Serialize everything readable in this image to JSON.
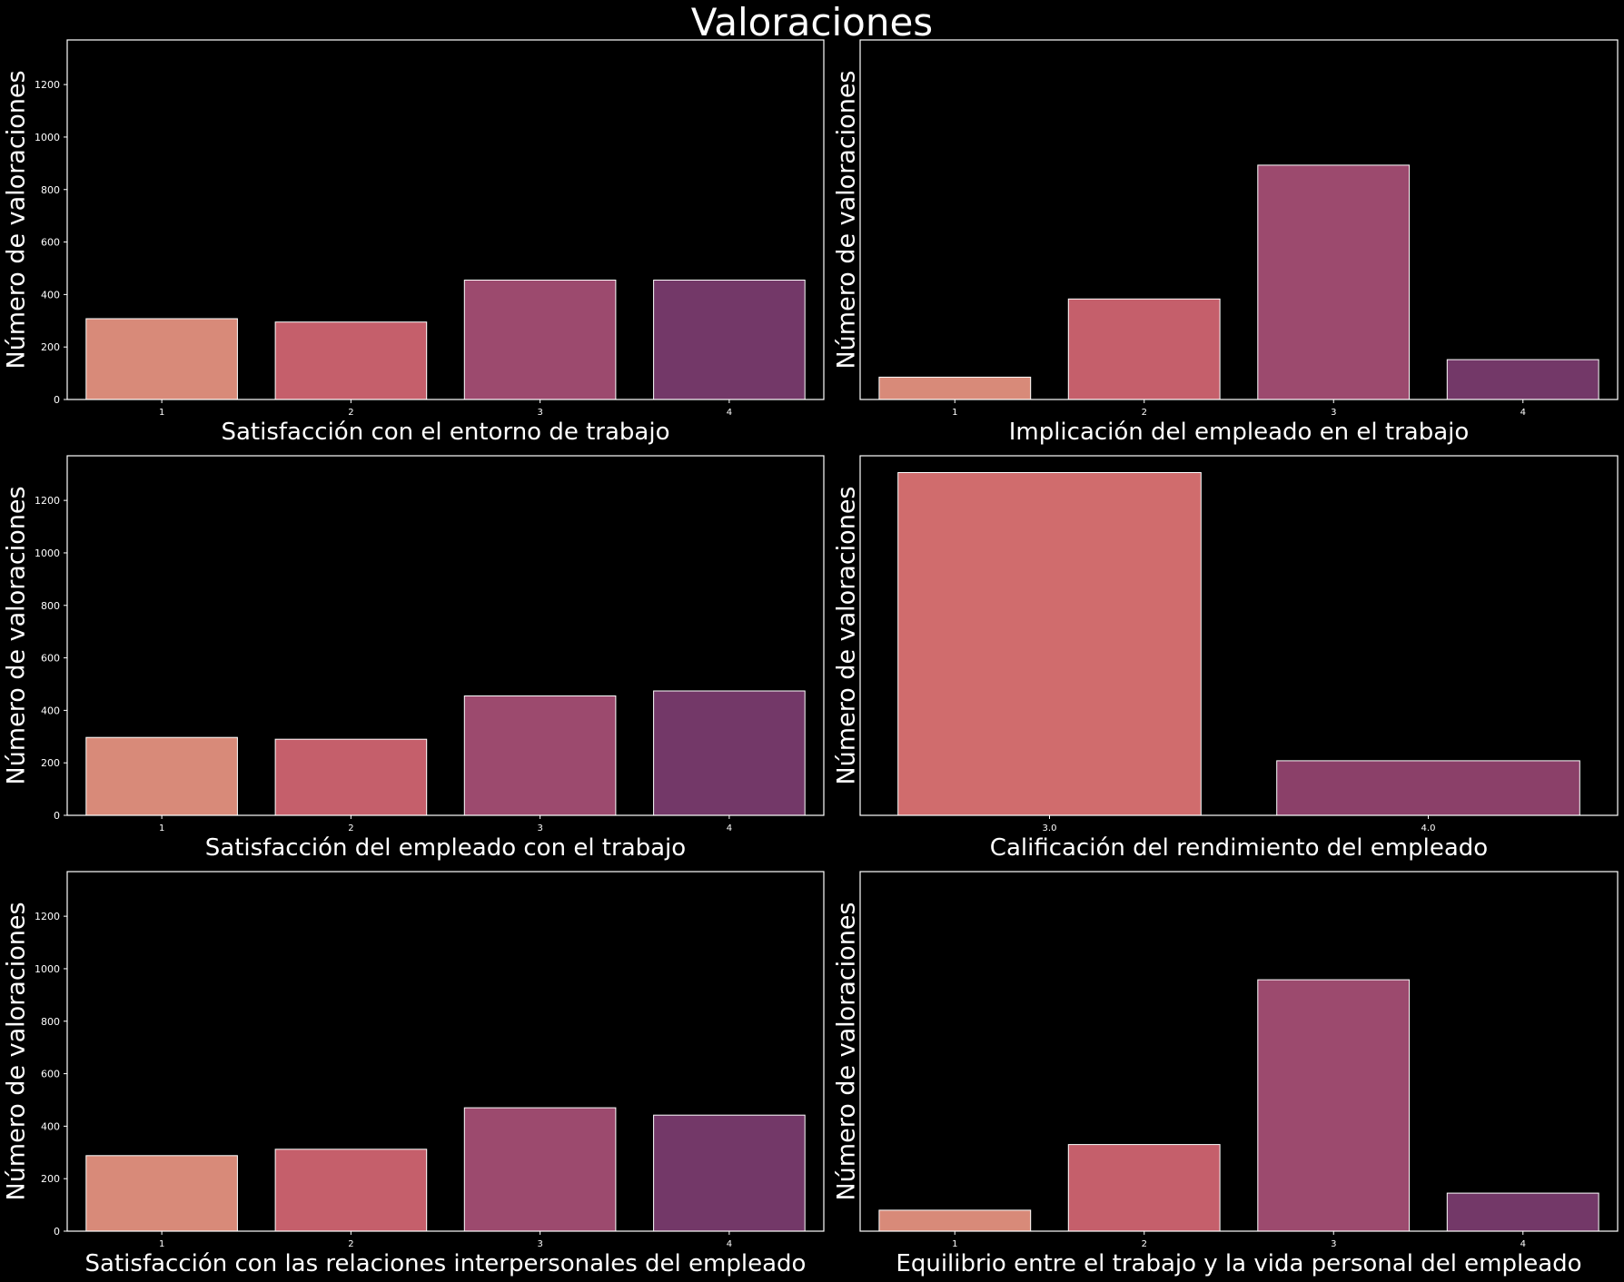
{
  "figure": {
    "title": "Valoraciones",
    "background": "#000000",
    "text_color": "#ffffff"
  },
  "chart_data": [
    {
      "type": "bar",
      "categories": [
        "1",
        "2",
        "3",
        "4"
      ],
      "values": [
        308,
        295,
        455,
        455
      ],
      "xlabel": "Satisfacción con el entorno de trabajo",
      "ylabel": "Número de valoraciones",
      "ylim": [
        0,
        1370
      ],
      "yticks": [
        "0",
        "200",
        "400",
        "600",
        "800",
        "1000",
        "1200"
      ],
      "colors": [
        "#d88a79",
        "#c55f6b",
        "#9c4a6e",
        "#733868"
      ],
      "grid": false
    },
    {
      "type": "bar",
      "categories": [
        "1",
        "2",
        "3",
        "4"
      ],
      "values": [
        85,
        383,
        893,
        152
      ],
      "xlabel": "Implicación del empleado en el trabajo",
      "ylabel": "Número de valoraciones",
      "ylim": [
        0,
        1370
      ],
      "yticks": [],
      "colors": [
        "#d88a79",
        "#c55f6b",
        "#9c4a6e",
        "#733868"
      ],
      "grid": false
    },
    {
      "type": "bar",
      "categories": [
        "1",
        "2",
        "3",
        "4"
      ],
      "values": [
        297,
        290,
        455,
        474
      ],
      "xlabel": "Satisfacción del empleado con el trabajo",
      "ylabel": "Número de valoraciones",
      "ylim": [
        0,
        1370
      ],
      "yticks": [
        "0",
        "200",
        "400",
        "600",
        "800",
        "1000",
        "1200"
      ],
      "colors": [
        "#d88a79",
        "#c55f6b",
        "#9c4a6e",
        "#733868"
      ],
      "grid": false
    },
    {
      "type": "bar",
      "categories": [
        "3.0",
        "4.0"
      ],
      "values": [
        1306,
        208
      ],
      "xlabel": "Calificación del rendimiento del empleado",
      "ylabel": "Número de valoraciones",
      "ylim": [
        0,
        1370
      ],
      "yticks": [],
      "colors": [
        "#d06c6d",
        "#8b4069"
      ],
      "grid": false
    },
    {
      "type": "bar",
      "categories": [
        "1",
        "2",
        "3",
        "4"
      ],
      "values": [
        288,
        312,
        470,
        442
      ],
      "xlabel": "Satisfacción con las relaciones interpersonales del empleado",
      "ylabel": "Número de valoraciones",
      "ylim": [
        0,
        1370
      ],
      "yticks": [
        "0",
        "200",
        "400",
        "600",
        "800",
        "1000",
        "1200"
      ],
      "colors": [
        "#d88a79",
        "#c55f6b",
        "#9c4a6e",
        "#733868"
      ],
      "grid": false
    },
    {
      "type": "bar",
      "categories": [
        "1",
        "2",
        "3",
        "4"
      ],
      "values": [
        80,
        330,
        958,
        145
      ],
      "xlabel": "Equilibrio entre el trabajo y la vida personal del empleado",
      "ylabel": "Número de valoraciones",
      "ylim": [
        0,
        1370
      ],
      "yticks": [],
      "colors": [
        "#d88a79",
        "#c55f6b",
        "#9c4a6e",
        "#733868"
      ],
      "grid": false
    }
  ]
}
